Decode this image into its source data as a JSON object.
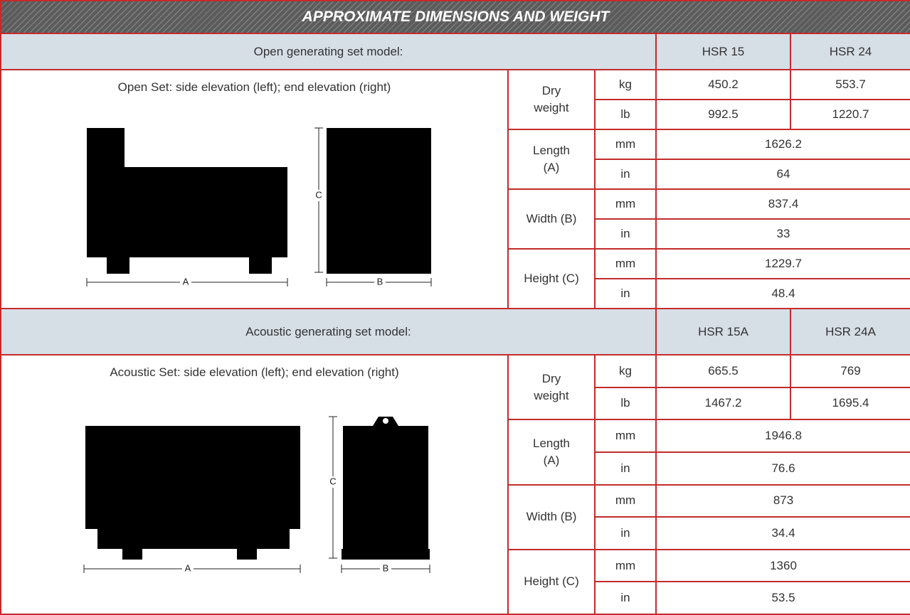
{
  "title": "APPROXIMATE DIMENSIONS AND WEIGHT",
  "sections": [
    {
      "model_label": "Open generating set model:",
      "models": [
        "HSR 15",
        "HSR 24"
      ],
      "caption": "Open Set: side elevation (left); end elevation (right)",
      "drawing_labels": [
        "A",
        "B",
        "C"
      ],
      "rows": [
        {
          "label": "Dry\nweight",
          "units": [
            {
              "unit": "kg",
              "values": [
                "450.2",
                "553.7"
              ]
            },
            {
              "unit": "lb",
              "values": [
                "992.5",
                "1220.7"
              ]
            }
          ]
        },
        {
          "label": "Length\n(A)",
          "units": [
            {
              "unit": "mm",
              "values": [
                "1626.2"
              ]
            },
            {
              "unit": "in",
              "values": [
                "64"
              ]
            }
          ]
        },
        {
          "label": "Width (B)",
          "units": [
            {
              "unit": "mm",
              "values": [
                "837.4"
              ]
            },
            {
              "unit": "in",
              "values": [
                "33"
              ]
            }
          ]
        },
        {
          "label": "Height (C)",
          "units": [
            {
              "unit": "mm",
              "values": [
                "1229.7"
              ]
            },
            {
              "unit": "in",
              "values": [
                "48.4"
              ]
            }
          ]
        }
      ]
    },
    {
      "model_label": "Acoustic generating set model:",
      "models": [
        "HSR 15A",
        "HSR 24A"
      ],
      "caption": "Acoustic Set: side elevation (left); end elevation (right)",
      "drawing_labels": [
        "A",
        "B",
        "C"
      ],
      "rows": [
        {
          "label": "Dry\nweight",
          "units": [
            {
              "unit": "kg",
              "values": [
                "665.5",
                "769"
              ]
            },
            {
              "unit": "lb",
              "values": [
                "1467.2",
                "1695.4"
              ]
            }
          ]
        },
        {
          "label": "Length\n(A)",
          "units": [
            {
              "unit": "mm",
              "values": [
                "1946.8"
              ]
            },
            {
              "unit": "in",
              "values": [
                "76.6"
              ]
            }
          ]
        },
        {
          "label": "Width (B)",
          "units": [
            {
              "unit": "mm",
              "values": [
                "873"
              ]
            },
            {
              "unit": "in",
              "values": [
                "34.4"
              ]
            }
          ]
        },
        {
          "label": "Height (C)",
          "units": [
            {
              "unit": "mm",
              "values": [
                "1360"
              ]
            },
            {
              "unit": "in",
              "values": [
                "53.5"
              ]
            }
          ]
        }
      ]
    }
  ]
}
